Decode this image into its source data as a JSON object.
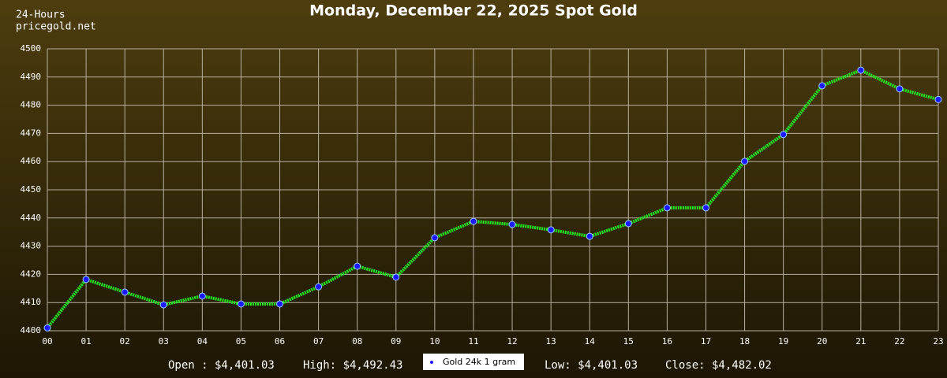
{
  "chart_data": {
    "type": "line",
    "title": "Monday, December 22, 2025 Spot Gold",
    "corner_labels": [
      "24-Hours",
      "pricegold.net"
    ],
    "categories": [
      "00",
      "01",
      "02",
      "03",
      "04",
      "05",
      "06",
      "07",
      "08",
      "09",
      "10",
      "11",
      "12",
      "13",
      "14",
      "15",
      "16",
      "17",
      "18",
      "19",
      "20",
      "21",
      "22",
      "23"
    ],
    "series": [
      {
        "name": "Gold 24k 1 gram",
        "color": "#22ee22",
        "marker_color": "#1a1aff",
        "values": [
          4401.03,
          4418.2,
          4413.7,
          4409.2,
          4412.3,
          4409.5,
          4409.5,
          4415.6,
          4422.9,
          4419.0,
          4433.0,
          4438.8,
          4437.7,
          4435.8,
          4433.5,
          4438.0,
          4443.6,
          4443.6,
          4460.1,
          4469.6,
          4486.9,
          4492.43,
          4485.8,
          4482.02
        ]
      }
    ],
    "ylim": [
      4400,
      4500
    ],
    "yticks": [
      4400,
      4410,
      4420,
      4430,
      4440,
      4450,
      4460,
      4470,
      4480,
      4490,
      4500
    ],
    "grid": true,
    "summary": [
      "Open : $4,401.03",
      "High: $4,492.43",
      "Low: $4,401.03",
      "Close: $4,482.02"
    ]
  }
}
